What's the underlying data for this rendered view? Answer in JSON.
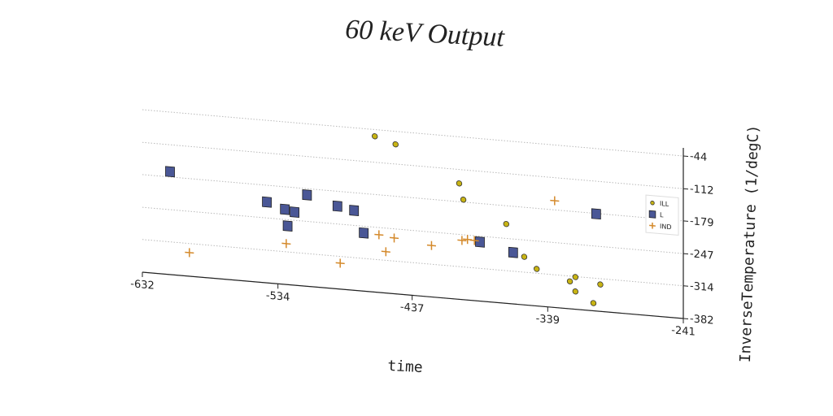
{
  "chart_data": {
    "type": "scatter",
    "title": "60 keV Output",
    "xlabel": "time",
    "ylabel": "InverseTemperature (1/degC)",
    "xlim": [
      -632,
      -241
    ],
    "xticks": [
      -632,
      -534,
      -437,
      -339,
      -241
    ],
    "ylim": [
      -382,
      -44
    ],
    "yticks": [
      -44,
      -112,
      -179,
      -247,
      -314,
      -382
    ],
    "grid": true,
    "legend": "upper right",
    "series": [
      {
        "name": "ILL",
        "color": "#c8b414",
        "marker": "circle",
        "x": [
          -464,
          -449,
          -403,
          -400,
          -369,
          -356,
          -347,
          -323,
          -319,
          -319,
          -301,
          -306
        ],
        "values": [
          -58,
          -71,
          -141,
          -174,
          -217,
          -282,
          -305,
          -325,
          -315,
          -345,
          -326,
          -366
        ]
      },
      {
        "name": "L",
        "color": "#4a5796",
        "marker": "square",
        "x": [
          -612,
          -542,
          -529,
          -527,
          -522,
          -513,
          -491,
          -479,
          -472,
          -388,
          -364,
          -304
        ],
        "values": [
          -168,
          -214,
          -226,
          -260,
          -230,
          -192,
          -210,
          -216,
          -261,
          -259,
          -275,
          -180
        ]
      },
      {
        "name": "IND",
        "color": "#d4892a",
        "marker": "plus",
        "x": [
          -598,
          -528,
          -489,
          -461,
          -450,
          -456,
          -423,
          -401,
          -397,
          -392,
          -334,
          -257
        ],
        "values": [
          -333,
          -297,
          -328,
          -262,
          -266,
          -296,
          -275,
          -259,
          -256,
          -257,
          -160,
          -175
        ]
      }
    ]
  }
}
